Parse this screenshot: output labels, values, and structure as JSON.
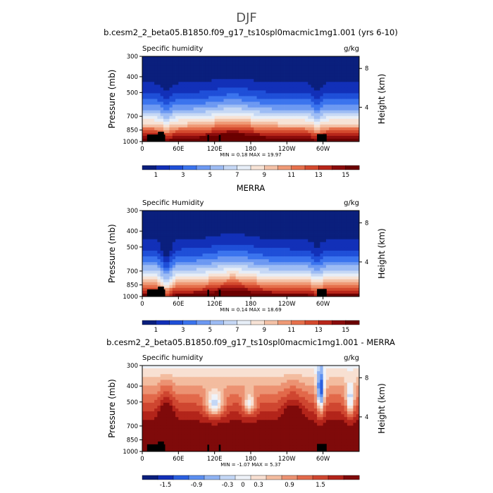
{
  "title": "DJF",
  "chart_data": [
    {
      "type": "heatmap",
      "title": "b.cesm2_2_beta05.B1850.f09_g17_ts10spl0macmic1mg1.001 (yrs 6-10)",
      "left_label": "Specific humidity",
      "right_label": "g/kg",
      "ylabel": "Pressure (mb)",
      "ylabel_right": "Height (km)",
      "x_ticks": [
        "0",
        "60E",
        "120E",
        "180",
        "120W",
        "60W"
      ],
      "y_ticks": [
        "300",
        "400",
        "500",
        "700",
        "850",
        "1000"
      ],
      "y_right_ticks": [
        "8",
        "4"
      ],
      "minmax": "MIN =    0.18   MAX =   19.97",
      "min": 0.18,
      "max": 19.97,
      "colorbar_labels": [
        "1",
        "3",
        "5",
        "7",
        "9",
        "11",
        "13",
        "15"
      ],
      "colorbar_colors": [
        "#0a1f7d",
        "#1230b8",
        "#1f4fd8",
        "#3b74ee",
        "#6d99f2",
        "#9dbcf4",
        "#c6d8f5",
        "#e7eef7",
        "#f7e3d6",
        "#f4c2a7",
        "#ef9a76",
        "#e6704c",
        "#d44a2e",
        "#b8261a",
        "#8a0c0c",
        "#6b0000"
      ],
      "field": "q",
      "extremes": [
        0.18,
        19.97
      ]
    },
    {
      "type": "heatmap",
      "title": "MERRA",
      "left_label": "Specific Humidity",
      "right_label": "g/kg",
      "ylabel": "Pressure (mb)",
      "ylabel_right": "Height (km)",
      "x_ticks": [
        "0",
        "60E",
        "120E",
        "180",
        "120W",
        "60W"
      ],
      "y_ticks": [
        "300",
        "400",
        "500",
        "700",
        "850",
        "1000"
      ],
      "y_right_ticks": [
        "8",
        "4"
      ],
      "minmax": "MIN =    0.14   MAX =   18.69",
      "min": 0.14,
      "max": 18.69,
      "colorbar_labels": [
        "1",
        "3",
        "5",
        "7",
        "9",
        "11",
        "13",
        "15"
      ],
      "colorbar_colors": [
        "#0a1f7d",
        "#1230b8",
        "#1f4fd8",
        "#3b74ee",
        "#6d99f2",
        "#9dbcf4",
        "#c6d8f5",
        "#e7eef7",
        "#f7e3d6",
        "#f4c2a7",
        "#ef9a76",
        "#e6704c",
        "#d44a2e",
        "#b8261a",
        "#8a0c0c",
        "#6b0000"
      ],
      "field": "q",
      "extremes": [
        0.14,
        18.69
      ]
    },
    {
      "type": "heatmap",
      "title": "b.cesm2_2_beta05.B1850.f09_g17_ts10spl0macmic1mg1.001 - MERRA",
      "left_label": "Specific humidity",
      "right_label": "g/kg",
      "ylabel": "Pressure (mb)",
      "ylabel_right": "Height (km)",
      "x_ticks": [
        "0",
        "60E",
        "120E",
        "180",
        "120W",
        "60W"
      ],
      "y_ticks": [
        "300",
        "400",
        "500",
        "700",
        "850",
        "1000"
      ],
      "y_right_ticks": [
        "8",
        "4"
      ],
      "minmax": "MIN =   -1.07   MAX =    5.37",
      "min": -1.07,
      "max": 5.37,
      "colorbar_labels": [
        "-1.5",
        "-0.9",
        "-0.3",
        "0",
        "0.3",
        "0.9",
        "1.5"
      ],
      "colorbar_colors": [
        "#0a1f7d",
        "#1230b8",
        "#2a5fe0",
        "#5b8ef0",
        "#8fb3f3",
        "#c3d7f6",
        "#eef2f8",
        "#f8e0d2",
        "#f3bc9f",
        "#ec9272",
        "#e2694a",
        "#cf4630",
        "#b3241a",
        "#7f0a0a"
      ],
      "field": "diff",
      "extremes": [
        -1.07,
        5.37
      ]
    }
  ]
}
